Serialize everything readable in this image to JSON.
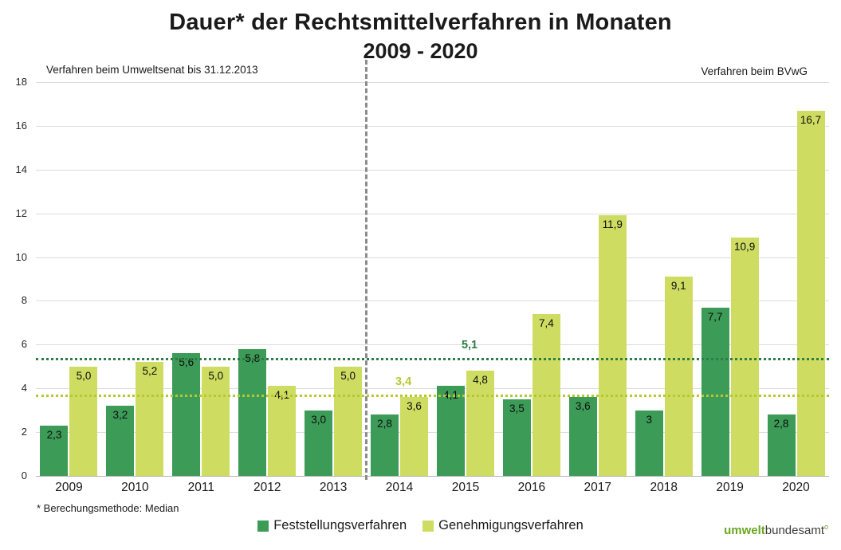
{
  "title": {
    "line1": "Dauer* der Rechtsmittelverfahren in Monaten",
    "line2": "2009 - 2020"
  },
  "annotations": {
    "left": "Verfahren beim Umweltsenat bis 31.12.2013",
    "right": "Verfahren beim BVwG",
    "footnote": "* Berechungsmethode: Median"
  },
  "logo": {
    "part1": "umwelt",
    "part2": "bundesamt",
    "mark": "o"
  },
  "chart_data": {
    "type": "bar",
    "title": "Dauer* der Rechtsmittelverfahren in Monaten 2009 - 2020",
    "xlabel": "",
    "ylabel": "",
    "ylim": [
      0,
      18
    ],
    "ytick_step": 2,
    "grid": true,
    "legend_position": "bottom",
    "categories": [
      "2009",
      "2010",
      "2011",
      "2012",
      "2013",
      "2014",
      "2015",
      "2016",
      "2017",
      "2018",
      "2019",
      "2020"
    ],
    "series": [
      {
        "name": "Feststellungsverfahren",
        "color": "#3d9b58",
        "values": [
          2.3,
          3.2,
          5.6,
          5.8,
          3.0,
          2.8,
          4.1,
          3.5,
          3.6,
          3,
          7.7,
          2.8
        ],
        "labels": [
          "2,3",
          "3,2",
          "5,6",
          "5,8",
          "3,0",
          "2,8",
          "4,1",
          "3,5",
          "3,6",
          "3",
          "7,7",
          "2,8"
        ]
      },
      {
        "name": "Genehmigungsverfahren",
        "color": "#cedd62",
        "values": [
          5.0,
          5.2,
          5.0,
          4.1,
          5.0,
          3.6,
          4.8,
          7.4,
          11.9,
          9.1,
          10.9,
          16.7
        ],
        "labels": [
          "5,0",
          "5,2",
          "5,0",
          "4,1",
          "5,0",
          "3,6",
          "4,8",
          "7,4",
          "11,9",
          "9,1",
          "10,9",
          "16,7"
        ]
      }
    ],
    "separator_after_category": "2013",
    "median_lines": [
      {
        "label": "5,1",
        "value": 5.1,
        "color": "#2e7d46",
        "label_x_category": "2015"
      },
      {
        "label": "3,4",
        "value": 3.4,
        "color": "#b5c832",
        "label_x_category": "2014"
      }
    ]
  }
}
